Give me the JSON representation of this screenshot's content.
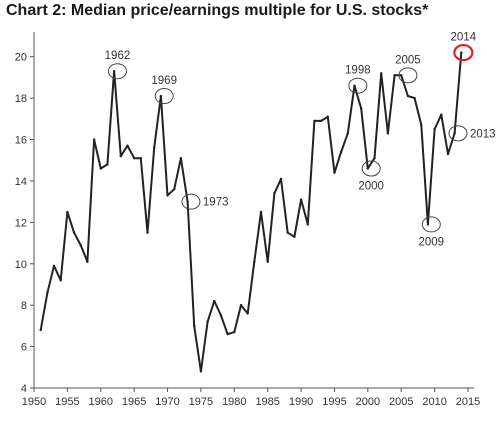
{
  "chart_data": {
    "type": "line",
    "title": "Chart 2: Median price/earnings multiple for U.S. stocks*",
    "xlim": [
      1950,
      2015
    ],
    "ylim": [
      4,
      21
    ],
    "grid": false,
    "x_ticks": [
      1950,
      1955,
      1960,
      1965,
      1970,
      1975,
      1980,
      1985,
      1990,
      1995,
      2000,
      2005,
      2010,
      2015
    ],
    "y_ticks": [
      4,
      6,
      8,
      10,
      12,
      14,
      16,
      18,
      20
    ],
    "series": [
      {
        "color": "#222222",
        "x": [
          1951,
          1952,
          1953,
          1954,
          1955,
          1956,
          1957,
          1958,
          1959,
          1960,
          1961,
          1962,
          1963,
          1964,
          1965,
          1966,
          1967,
          1968,
          1969,
          1970,
          1971,
          1972,
          1973,
          1974,
          1975,
          1976,
          1977,
          1978,
          1979,
          1980,
          1981,
          1982,
          1983,
          1984,
          1985,
          1986,
          1987,
          1988,
          1989,
          1990,
          1991,
          1992,
          1993,
          1994,
          1995,
          1996,
          1997,
          1998,
          1999,
          2000,
          2001,
          2002,
          2003,
          2004,
          2005,
          2006,
          2007,
          2008,
          2009,
          2010,
          2011,
          2012,
          2013,
          2014
        ],
        "y": [
          6.8,
          8.6,
          9.9,
          9.2,
          12.5,
          11.5,
          10.9,
          10.1,
          16.0,
          14.6,
          14.8,
          19.3,
          15.2,
          15.7,
          15.1,
          15.1,
          11.5,
          15.6,
          18.1,
          13.3,
          13.6,
          15.1,
          13.0,
          7.0,
          4.8,
          7.2,
          8.2,
          7.5,
          6.6,
          6.7,
          8.0,
          7.6,
          10.1,
          12.5,
          10.1,
          13.4,
          14.1,
          11.5,
          11.3,
          13.1,
          11.9,
          16.9,
          16.9,
          17.1,
          14.4,
          15.4,
          16.3,
          18.6,
          17.5,
          14.6,
          15.1,
          19.2,
          16.3,
          19.1,
          19.1,
          18.1,
          18.0,
          16.7,
          11.9,
          16.5,
          17.2,
          15.3,
          16.3,
          20.2
        ]
      }
    ],
    "annotations": [
      {
        "label": "1962",
        "x": 1962.5,
        "y": 19.3,
        "label_pos": "above",
        "color": "#444444"
      },
      {
        "label": "1969",
        "x": 1969.5,
        "y": 18.1,
        "label_pos": "above",
        "color": "#444444"
      },
      {
        "label": "1973",
        "x": 1973.5,
        "y": 13.0,
        "label_pos": "right",
        "color": "#444444"
      },
      {
        "label": "1998",
        "x": 1998.5,
        "y": 18.6,
        "label_pos": "above",
        "color": "#444444"
      },
      {
        "label": "2000",
        "x": 2000.5,
        "y": 14.6,
        "label_pos": "below",
        "color": "#444444"
      },
      {
        "label": "2005",
        "x": 2006.0,
        "y": 19.1,
        "label_pos": "above",
        "color": "#444444"
      },
      {
        "label": "2009",
        "x": 2009.5,
        "y": 11.9,
        "label_pos": "below",
        "color": "#444444"
      },
      {
        "label": "2013",
        "x": 2013.5,
        "y": 16.3,
        "label_pos": "right",
        "color": "#444444"
      },
      {
        "label": "2014",
        "x": 2014.3,
        "y": 20.2,
        "label_pos": "above",
        "color": "#e02020"
      }
    ]
  }
}
